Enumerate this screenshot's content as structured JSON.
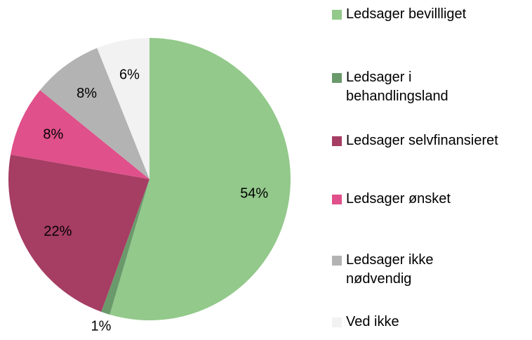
{
  "chart_data": {
    "type": "pie",
    "categories": [
      "Ledsager bevillliget",
      "Ledsager i behandlingsland",
      "Ledsager selvfinansieret",
      "Ledsager ønsket",
      "Ledsager ikke nødvendig",
      "Ved ikke"
    ],
    "values": [
      54,
      1,
      22,
      8,
      8,
      6
    ],
    "value_labels": [
      "54%",
      "1%",
      "22%",
      "8%",
      "8%",
      "6%"
    ],
    "colors": [
      "#93c98b",
      "#6a9a6b",
      "#a63d63",
      "#e0508a",
      "#b3b3b3",
      "#f2f2f2"
    ],
    "legend": "right"
  }
}
